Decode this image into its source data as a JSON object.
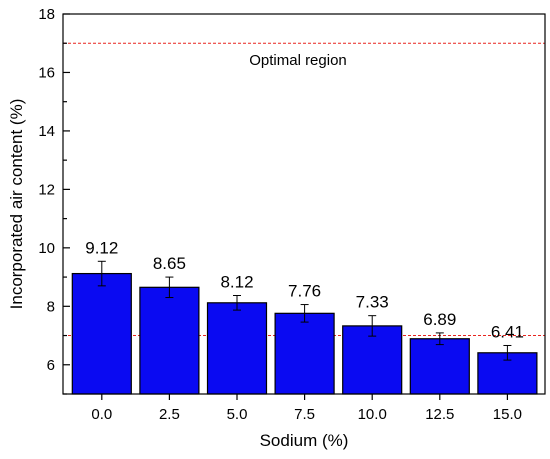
{
  "chart_data": {
    "type": "bar",
    "categories": [
      "0.0",
      "2.5",
      "5.0",
      "7.5",
      "10.0",
      "12.5",
      "15.0"
    ],
    "values": [
      9.12,
      8.65,
      8.12,
      7.76,
      7.33,
      6.89,
      6.41
    ],
    "value_labels": [
      "9.12",
      "8.65",
      "8.12",
      "7.76",
      "7.33",
      "6.89",
      "6.41"
    ],
    "errors": [
      0.42,
      0.35,
      0.25,
      0.3,
      0.35,
      0.2,
      0.25
    ],
    "xlabel": "Sodium (%)",
    "ylabel": "Incorporated air content (%)",
    "ylim": [
      5,
      18
    ],
    "yticks": [
      6,
      8,
      10,
      12,
      14,
      16,
      18
    ],
    "ytick_labels": [
      "6",
      "8",
      "10",
      "12",
      "14",
      "16",
      "18"
    ],
    "reference_lines": [
      {
        "value": 17,
        "style": "dashed",
        "color": "#e8241e"
      },
      {
        "value": 7,
        "style": "dashed",
        "color": "#e8241e"
      }
    ],
    "annotation": "Optimal region",
    "bar_color": "#0a0af2",
    "grid": false
  }
}
